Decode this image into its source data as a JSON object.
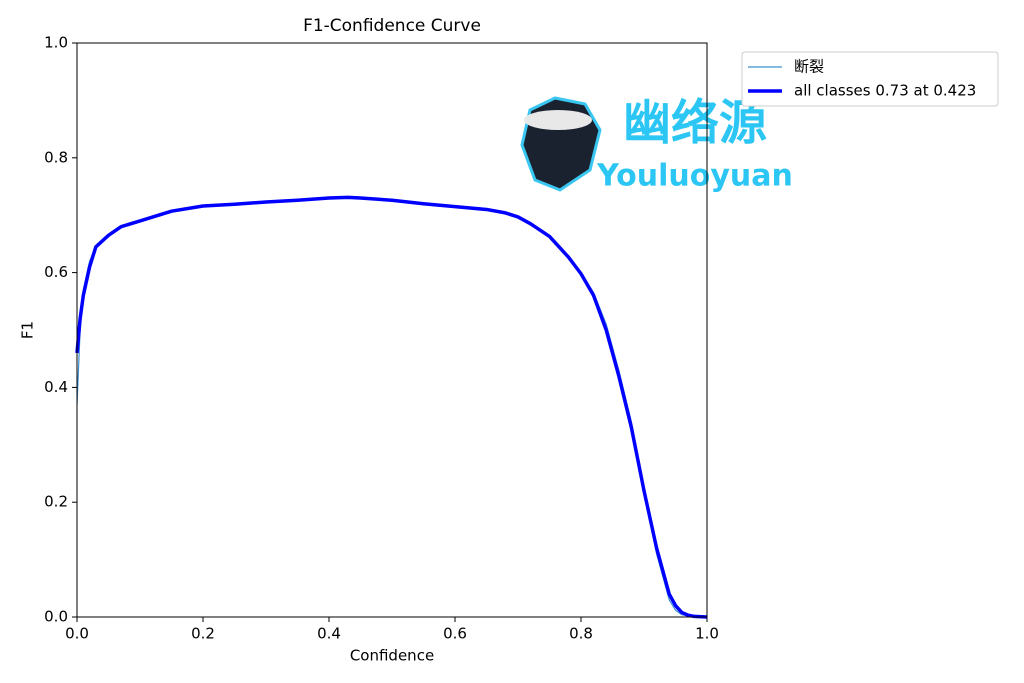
{
  "chart_data": {
    "type": "line",
    "title": "F1-Confidence Curve",
    "xlabel": "Confidence",
    "ylabel": "F1",
    "x": [
      0,
      0.005,
      0.01,
      0.02,
      0.03,
      0.05,
      0.07,
      0.1,
      0.15,
      0.2,
      0.25,
      0.3,
      0.35,
      0.4,
      0.43,
      0.45,
      0.5,
      0.55,
      0.6,
      0.65,
      0.68,
      0.7,
      0.72,
      0.75,
      0.78,
      0.8,
      0.82,
      0.84,
      0.86,
      0.88,
      0.9,
      0.92,
      0.94,
      0.95,
      0.96,
      0.97,
      0.98,
      1.0
    ],
    "series": [
      {
        "name": "断裂",
        "color": "#3a8fd0",
        "width": 1.2,
        "values": [
          0.37,
          0.5,
          0.57,
          0.62,
          0.645,
          0.665,
          0.68,
          0.69,
          0.707,
          0.716,
          0.719,
          0.723,
          0.726,
          0.73,
          0.731,
          0.73,
          0.726,
          0.72,
          0.715,
          0.71,
          0.704,
          0.697,
          0.685,
          0.665,
          0.628,
          0.6,
          0.565,
          0.51,
          0.43,
          0.34,
          0.22,
          0.11,
          0.03,
          0.012,
          0.004,
          0.002,
          0.001,
          0
        ]
      },
      {
        "name": "all classes 0.73 at 0.423",
        "color": "#0000ff",
        "width": 3.5,
        "values": [
          0.46,
          0.52,
          0.56,
          0.61,
          0.645,
          0.665,
          0.68,
          0.69,
          0.707,
          0.716,
          0.719,
          0.723,
          0.726,
          0.73,
          0.731,
          0.73,
          0.726,
          0.72,
          0.715,
          0.71,
          0.704,
          0.697,
          0.685,
          0.663,
          0.627,
          0.598,
          0.56,
          0.5,
          0.42,
          0.33,
          0.22,
          0.12,
          0.04,
          0.02,
          0.008,
          0.003,
          0.001,
          0
        ]
      }
    ],
    "xlim": [
      0,
      1
    ],
    "ylim": [
      0,
      1
    ],
    "xticks": [
      {
        "value": 0,
        "label": "0.0"
      },
      0.2,
      0.4,
      0.6,
      0.8,
      {
        "value": 1,
        "label": "1.0"
      }
    ],
    "yticks": [
      {
        "value": 0,
        "label": "0.0"
      },
      0.2,
      0.4,
      0.6,
      0.8,
      {
        "value": 1,
        "label": "1.0"
      }
    ],
    "legend": "outside-upper-right",
    "watermark": [
      "幽络源",
      "Youluoyuan"
    ]
  }
}
